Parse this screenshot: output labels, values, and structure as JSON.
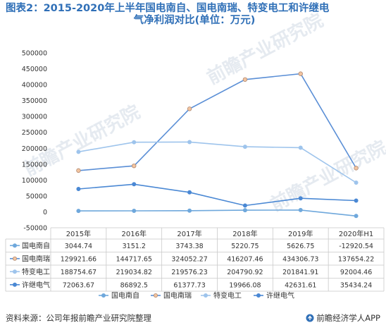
{
  "title_line1": "图表2：2015-2020年上半年国电南自、国电南瑞、特变电工和许继电",
  "title_line2": "气净利润对比(单位：万元)",
  "source": "资料来源：公司年报前瞻产业研究院整理",
  "brand": "前瞻经济学人APP",
  "watermark": "前瞻产业研究院",
  "chart_data": {
    "type": "line",
    "categories": [
      "2015年",
      "2016年",
      "2017年",
      "2018年",
      "2019年",
      "2020年H1"
    ],
    "ylim": [
      -50000,
      500000
    ],
    "yticks": [
      -50000,
      0,
      50000,
      100000,
      150000,
      200000,
      250000,
      300000,
      350000,
      400000,
      450000,
      500000
    ],
    "grid": false,
    "legend_position": "bottom",
    "series": [
      {
        "name": "国电南自",
        "color": "#6fa8dc",
        "values": [
          3044.74,
          3151.2,
          3743.38,
          5220.75,
          5626.75,
          -12920.54
        ],
        "labels": [
          "3044.74",
          "3151.2",
          "3743.38",
          "5220.75",
          "5626.75",
          "-12920.54"
        ]
      },
      {
        "name": "国电南瑞",
        "color": "#5b8fd6",
        "values": [
          129921.66,
          144717.65,
          324052.27,
          416207.46,
          434306.73,
          137654.22
        ],
        "labels": [
          "129921.66",
          "144717.65",
          "324052.27",
          "416207.46",
          "434306.73",
          "137654.22"
        ]
      },
      {
        "name": "特变电工",
        "color": "#9ec4ec",
        "values": [
          188754.67,
          219034.82,
          219576.23,
          204790.92,
          201841.91,
          92004.46
        ],
        "labels": [
          "188754.67",
          "219034.82",
          "219576.23",
          "204790.92",
          "201841.91",
          "92004.46"
        ]
      },
      {
        "name": "许继电气",
        "color": "#4a88d4",
        "values": [
          72063.67,
          86892.5,
          61377.73,
          19966.08,
          42631.61,
          35434.24
        ],
        "labels": [
          "72063.67",
          "86892.5",
          "61377.73",
          "19966.08",
          "42631.61",
          "35434.24"
        ]
      }
    ]
  }
}
